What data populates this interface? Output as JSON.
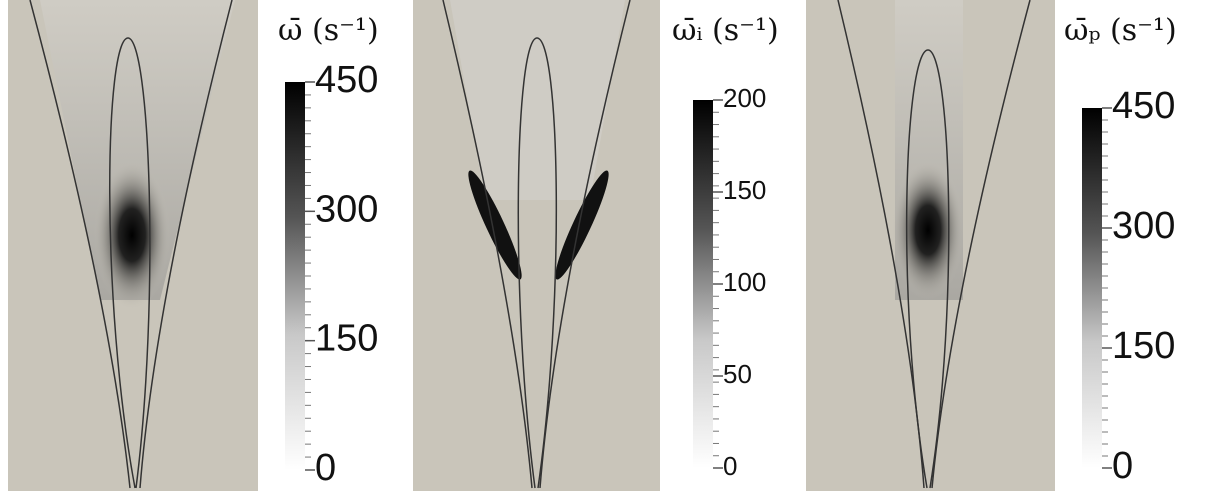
{
  "chart_data": [
    {
      "type": "heatmap",
      "title": "ω̄ (s⁻¹)",
      "clim": [
        0,
        450
      ],
      "cticks": [
        0,
        150,
        300,
        450
      ]
    },
    {
      "type": "heatmap",
      "title": "ω̄ᵢ (s⁻¹)",
      "clim": [
        0,
        200
      ],
      "cticks": [
        0,
        50,
        100,
        150,
        200
      ]
    },
    {
      "type": "heatmap",
      "title": "ω̄ₚ (s⁻¹)",
      "clim": [
        0,
        450
      ],
      "cticks": [
        0,
        150,
        300,
        450
      ]
    }
  ]
}
